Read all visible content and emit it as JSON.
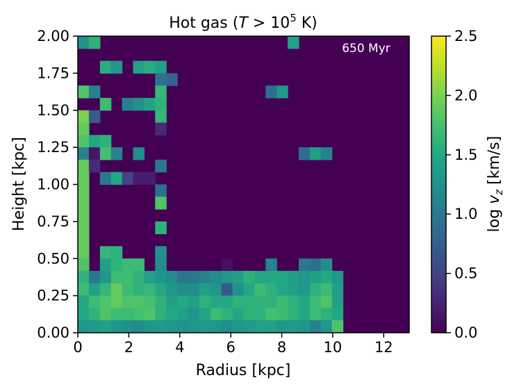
{
  "chart_data": {
    "type": "heatmap",
    "title_prefix": "Hot gas (",
    "title_T": "T",
    "title_gt": " > 10",
    "title_exp": "5",
    "title_suffix": " K)",
    "annotation": "650 Myr",
    "xlabel": "Radius [kpc]",
    "ylabel": "Height [kpc]",
    "colorbar_label": "log v̄z [km/s]",
    "colorbar_label_parts": {
      "prefix": "log ",
      "symbol": "v",
      "sub": "z",
      "suffix": " [km/s]"
    },
    "xlim": [
      0,
      13
    ],
    "ylim": [
      0,
      2
    ],
    "clim": [
      0,
      2.5
    ],
    "colormap": "viridis",
    "background_color": "#440154",
    "x_bin_width": 0.4333,
    "y_bin_width": 0.0833,
    "x_ticks": [
      0,
      2,
      4,
      6,
      8,
      10,
      12
    ],
    "x_tick_labels": [
      "0",
      "2",
      "4",
      "6",
      "8",
      "10",
      "12"
    ],
    "y_ticks": [
      0,
      0.25,
      0.5,
      0.75,
      1.0,
      1.25,
      1.5,
      1.75,
      2.0
    ],
    "y_tick_labels": [
      "0.00",
      "0.25",
      "0.50",
      "0.75",
      "1.00",
      "1.25",
      "1.50",
      "1.75",
      "2.00"
    ],
    "cbar_ticks": [
      0,
      0.5,
      1.0,
      1.5,
      2.0,
      2.5
    ],
    "cbar_tick_labels": [
      "0.0",
      "0.5",
      "1.0",
      "1.5",
      "2.0",
      "2.5"
    ],
    "grid_rows_top_to_bottom": [
      "0,1.25;1,1.6;19,1.4",
      "",
      "2,1.55;3,1.3;5,1.4;6,1.55;7,1.4",
      "7,0.9;8,0.8",
      "0,1.8;1,1.1;7,1.65;17,0.9;18,1.3",
      "2,1.7;4,1.1;5,1.25;6,1.45;7,1.6",
      "0,2.0;1,0.7;7,1.65",
      "0,1.9;7,0.3",
      "0,1.8;1,1.5;2,1.6",
      "0,1.1;1,0.15;2,1.75;3,1.1;5,1.2;20,0.9;21,1.4;22,1.1",
      "0,1.9;1,0.3;7,1.0",
      "0,1.9;2,1.0;3,1.5;4,0.5;5,0.2;6,0.2",
      "0,1.9;7,0.9",
      "0,1.9;7,1.8",
      "0,1.9",
      "0,1.9;7,1.6",
      "0,1.9",
      "0,1.9;2,1.65;3,1.6;7,1.25",
      "0,1.8;2,1.4;3,1.6;4,1.7;5,1.7;7,1.2;13,0.1;17,1.1;20,1.0;21,0.9;22,1.2",
      "0,1.6;1,1.0;2,1.3;3,1.7;4,1.7;5,1.6;6,1.4;7,1.3;8,1.2;9,1.0;10,1.0;11,1.1;12,1.2;13,1.3;14,1.4;15,1.6;16,1.5;17,1.5;18,1.5;19,1.4;20,1.3;21,1.4;22,1.5;23,1.3",
      "0,1.7;1,1.4;2,1.65;3,1.9;4,1.7;5,1.6;6,1.65;7,1.5;8,1.3;9,1.2;10,1.2;11,1.4;12,1.3;13,0.7;14,1.25;15,1.5;16,1.7;17,1.6;18,1.5;19,1.4;20,1.3;21,1.6;22,1.7;23,1.4",
      "0,1.5;1,1.7;2,1.8;3,1.9;4,1.8;5,1.8;6,1.75;7,1.6;8,1.4;9,1.5;10,1.4;11,1.6;12,1.5;13,1.5;14,1.6;15,1.6;16,1.6;17,1.6;18,1.7;19,1.6;20,1.5;21,1.7;22,1.8;23,1.4",
      "0,1.5;1,1.6;2,1.8;3,1.7;4,1.7;5,1.75;6,1.8;7,1.6;8,1.5;9,1.4;10,1.3;11,1.45;12,1.7;13,1.6;14,1.5;15,1.6;16,1.6;17,1.75;18,1.7;19,1.6;20,1.5;21,1.7;22,1.6;23,1.5",
      "0,1.3;1,1.35;2,1.4;3,1.3;4,1.25;5,1.2;6,1.3;7,1.35;8,1.3;9,1.25;10,1.3;11,1.35;12,1.3;13,1.2;14,1.3;15,1.35;16,1.4;17,1.4;18,1.3;19,1.35;20,1.3;21,1.1;22,1.3;23,1.8"
    ]
  }
}
